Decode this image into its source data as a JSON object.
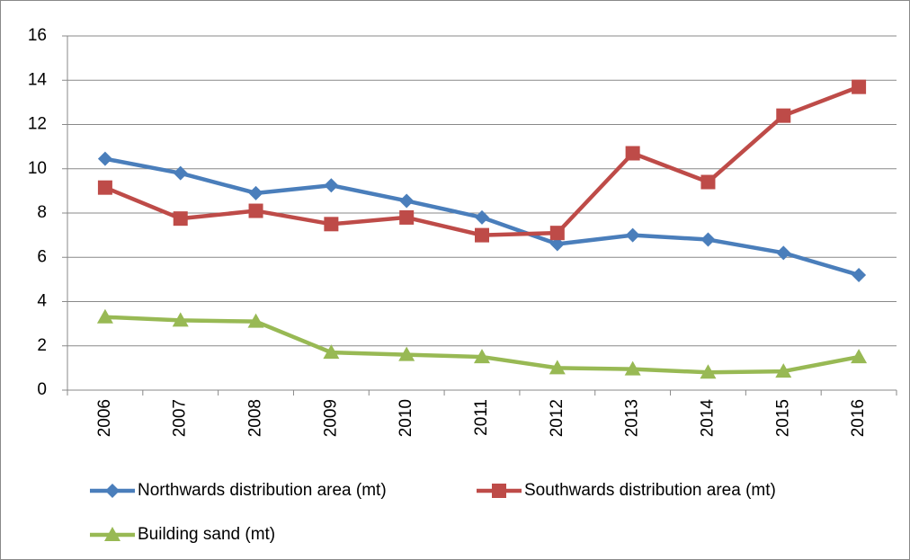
{
  "chart_data": {
    "type": "line",
    "categories": [
      "2006",
      "2007",
      "2008",
      "2009",
      "2010",
      "2011",
      "2012",
      "2013",
      "2014",
      "2015",
      "2016"
    ],
    "series": [
      {
        "name": "Northwards distribution area (mt)",
        "color": "#4a7ebb",
        "marker": "diamond",
        "values": [
          10.45,
          9.8,
          8.9,
          9.25,
          8.55,
          7.8,
          6.6,
          7.0,
          6.8,
          6.2,
          5.2
        ]
      },
      {
        "name": "Southwards distribution area (mt)",
        "color": "#be4b48",
        "marker": "square",
        "values": [
          9.15,
          7.75,
          8.1,
          7.5,
          7.8,
          7.0,
          7.1,
          10.7,
          9.4,
          12.4,
          13.7
        ]
      },
      {
        "name": "Building sand (mt)",
        "color": "#98b954",
        "marker": "triangle",
        "values": [
          3.3,
          3.15,
          3.1,
          1.7,
          1.6,
          1.5,
          1.0,
          0.95,
          0.8,
          0.85,
          1.5
        ]
      }
    ],
    "ylim": [
      0,
      16
    ],
    "yticks": [
      0,
      2,
      4,
      6,
      8,
      10,
      12,
      14,
      16
    ],
    "grid": true,
    "legend": "bottom"
  }
}
